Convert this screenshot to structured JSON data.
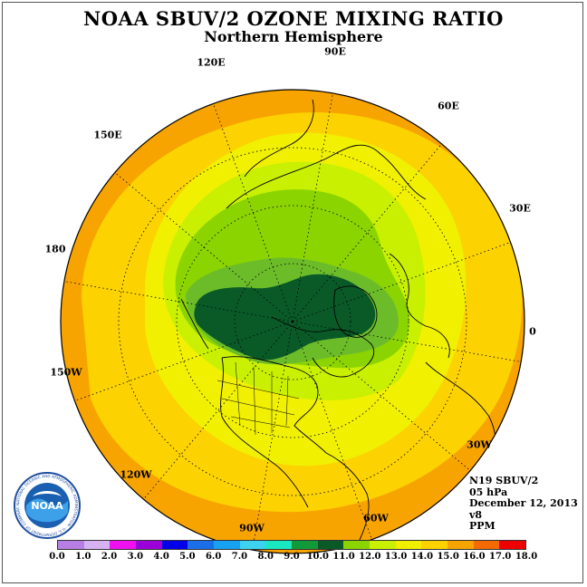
{
  "title": "NOAA SBUV/2 OZONE MIXING RATIO",
  "subtitle": "Northern Hemisphere",
  "longitude_labels": [
    "90E",
    "60E",
    "30E",
    "0",
    "30W",
    "60W",
    "90W",
    "120W",
    "150W",
    "180",
    "150E",
    "120E"
  ],
  "info": {
    "satellite": "N19 SBUV/2",
    "level": "05 hPa",
    "date": "December 12, 2013",
    "version": "v8",
    "units": "PPM"
  },
  "logo_text": "NOAA",
  "logo_ring_text": "NATIONAL OCEANIC AND ATMOSPHERIC ADMINISTRATION · U.S. DEPARTMENT OF COMMERCE",
  "colorbar": {
    "ticks": [
      "0.0",
      "1.0",
      "2.0",
      "3.0",
      "4.0",
      "5.0",
      "6.0",
      "7.0",
      "8.0",
      "9.0",
      "10.0",
      "11.0",
      "12.0",
      "13.0",
      "14.0",
      "15.0",
      "16.0",
      "17.0",
      "18.0"
    ],
    "colors": [
      "#b77fe3",
      "#d7b2f0",
      "#ee10ee",
      "#9a00d8",
      "#0000e8",
      "#1a6ee8",
      "#16a2f0",
      "#3cd2f0",
      "#19e8c0",
      "#129a3a",
      "#0a5a28",
      "#8cd400",
      "#c8f000",
      "#f0f000",
      "#fcd200",
      "#f8a400",
      "#f46a00",
      "#ec0000",
      "#8a5028"
    ]
  },
  "ozone_field_levels": {
    "outer_band": 15.0,
    "mid_band": 14.0,
    "inner_band": 13.0,
    "green_light": 12.0,
    "green_mid": 11.0,
    "green_dark": 10.0,
    "core": 9.0
  }
}
